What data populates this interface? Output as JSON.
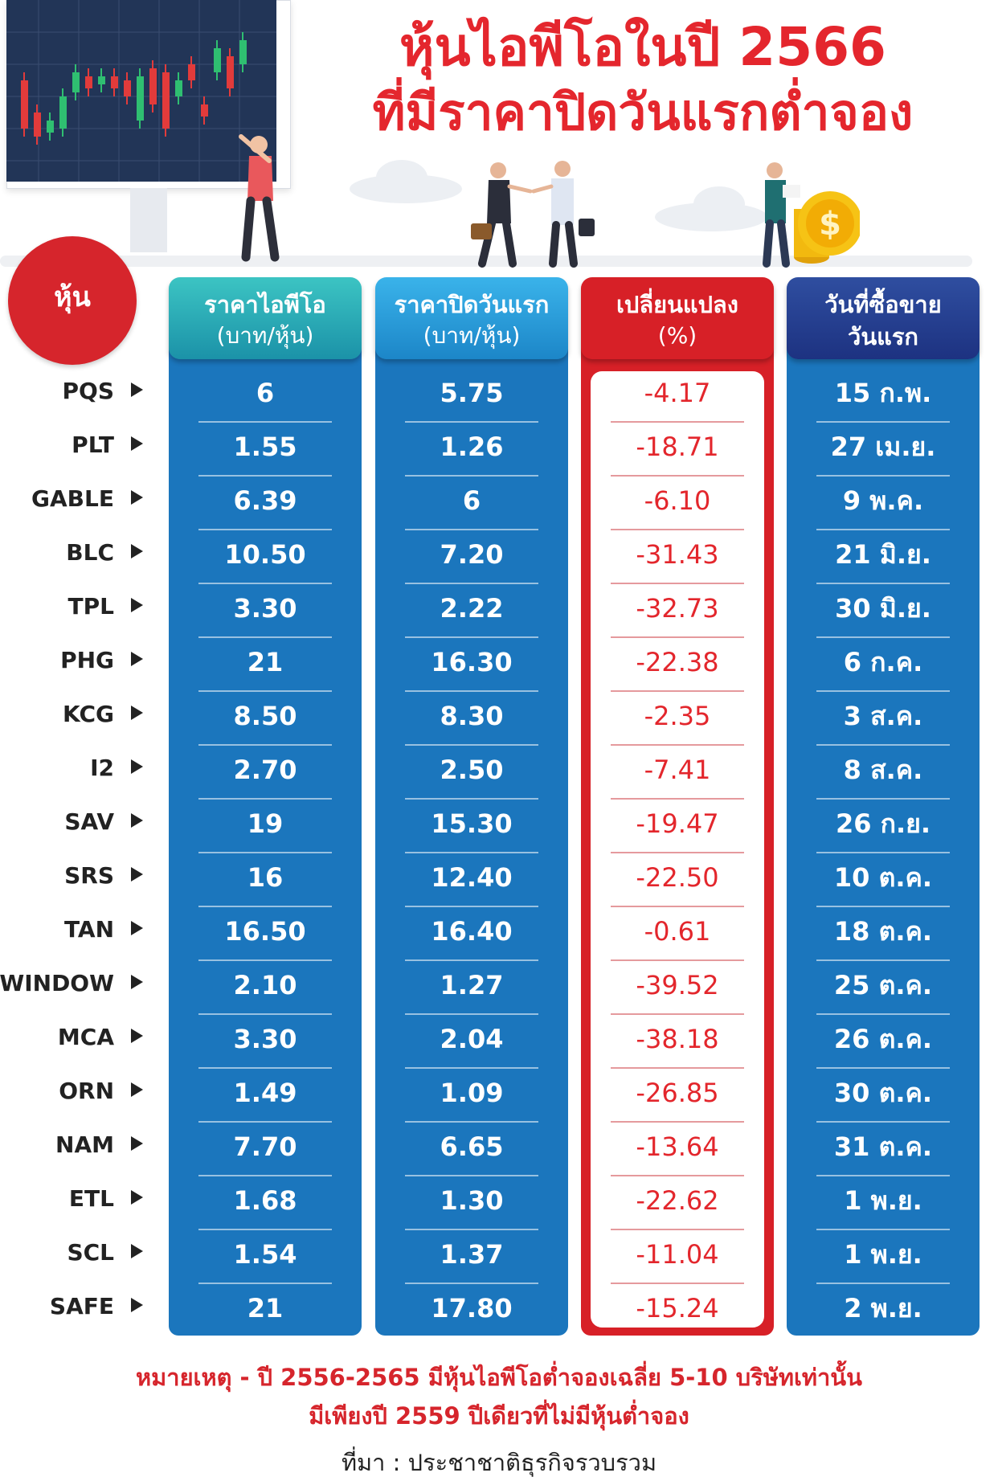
{
  "title": {
    "line1": "หุ้นไอพีโอในปี 2566",
    "line2": "ที่มีราคาปิดวันแรกต่ำจอง"
  },
  "stock_label": "หุ้น",
  "columns": {
    "ipo_price": {
      "line1": "ราคาไอพีโอ",
      "line2": "(บาท/หุ้น)"
    },
    "close_price": {
      "line1": "ราคาปิดวันแรก",
      "line2": "(บาท/หุ้น)"
    },
    "change": {
      "line1": "เปลี่ยนแปลง",
      "line2": "(%)"
    },
    "first_day": {
      "line1": "วันที่ซื้อขาย",
      "line2": "วันแรก"
    }
  },
  "chart_data": {
    "type": "table",
    "columns": [
      "หุ้น",
      "ราคาไอพีโอ (บาท/หุ้น)",
      "ราคาปิดวันแรก (บาท/หุ้น)",
      "เปลี่ยนแปลง (%)",
      "วันที่ซื้อขายวันแรก"
    ],
    "rows": [
      [
        "PQS",
        "6",
        "5.75",
        "-4.17",
        "15 ก.พ."
      ],
      [
        "PLT",
        "1.55",
        "1.26",
        "-18.71",
        "27 เม.ย."
      ],
      [
        "GABLE",
        "6.39",
        "6",
        "-6.10",
        "9 พ.ค."
      ],
      [
        "BLC",
        "10.50",
        "7.20",
        "-31.43",
        "21 มิ.ย."
      ],
      [
        "TPL",
        "3.30",
        "2.22",
        "-32.73",
        "30 มิ.ย."
      ],
      [
        "PHG",
        "21",
        "16.30",
        "-22.38",
        "6 ก.ค."
      ],
      [
        "KCG",
        "8.50",
        "8.30",
        "-2.35",
        "3 ส.ค."
      ],
      [
        "I2",
        "2.70",
        "2.50",
        "-7.41",
        "8 ส.ค."
      ],
      [
        "SAV",
        "19",
        "15.30",
        "-19.47",
        "26 ก.ย."
      ],
      [
        "SRS",
        "16",
        "12.40",
        "-22.50",
        "10 ต.ค."
      ],
      [
        "TAN",
        "16.50",
        "16.40",
        "-0.61",
        "18 ต.ค."
      ],
      [
        "WINDOW",
        "2.10",
        "1.27",
        "-39.52",
        "25 ต.ค."
      ],
      [
        "MCA",
        "3.30",
        "2.04",
        "-38.18",
        "26 ต.ค."
      ],
      [
        "ORN",
        "1.49",
        "1.09",
        "-26.85",
        "30 ต.ค."
      ],
      [
        "NAM",
        "7.70",
        "6.65",
        "-13.64",
        "31 ต.ค."
      ],
      [
        "ETL",
        "1.68",
        "1.30",
        "-22.62",
        "1 พ.ย."
      ],
      [
        "SCL",
        "1.54",
        "1.37",
        "-11.04",
        "1 พ.ย."
      ],
      [
        "SAFE",
        "21",
        "17.80",
        "-15.24",
        "2 พ.ย."
      ]
    ]
  },
  "footnote": {
    "line1": "หมายเหตุ -  ปี 2556-2565 มีหุ้นไอพีโอต่ำจองเฉลี่ย 5-10 บริษัทเท่านั้น",
    "line2": "มีเพียงปี 2559 ปีเดียวที่ไม่มีหุ้นต่ำจอง"
  },
  "source": "ที่มา : ประชาชาติธุรกิจรวบรวม",
  "colors": {
    "title_red": "#e4262d",
    "panel_blue": "#1b76bd",
    "panel_red": "#d72027",
    "teal_header": "#2db0b8",
    "navy_header": "#24398b",
    "badge_red": "#d6252c"
  },
  "illustrations": {
    "monitor": "stock-candlestick-chart-icon",
    "businessmen": "handshake-illustration",
    "coins": "gold-dollar-coins-icon"
  }
}
